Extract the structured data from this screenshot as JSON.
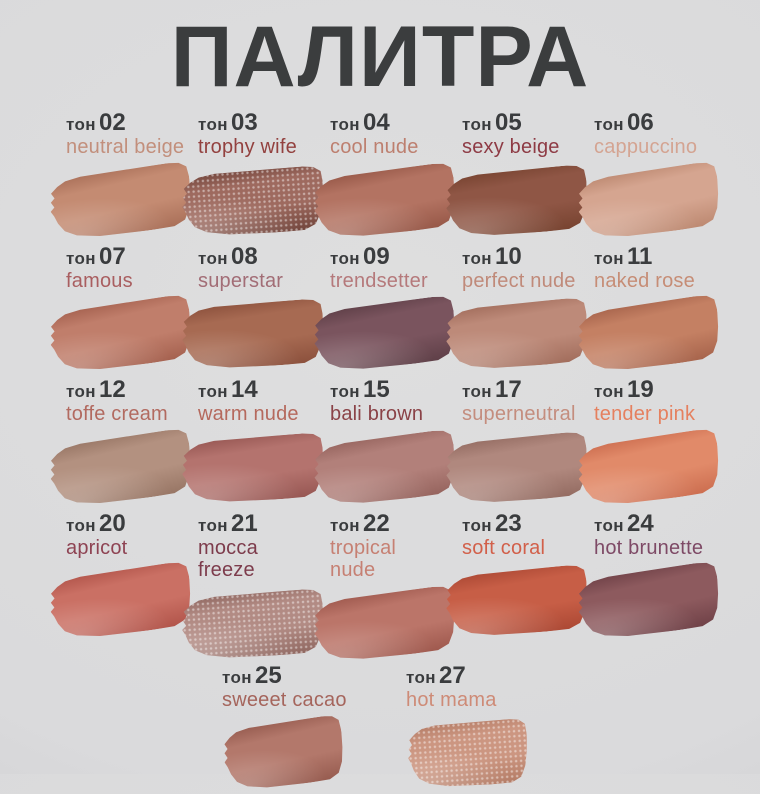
{
  "title": "ПАЛИТРА",
  "tone_word": "тон",
  "colors": {
    "background": "#dcdcde",
    "title_text": "#3b3d3e",
    "tone_label_text": "#3a3c3e"
  },
  "palette": {
    "rows": [
      [
        {
          "tone": "02",
          "name": "neutral beige",
          "name_color": "#c28f7c",
          "swatch": "#c48b72",
          "swatch_dark": "#a86e57",
          "shimmer": false
        },
        {
          "tone": "03",
          "name": "trophy wife",
          "name_color": "#93413f",
          "swatch": "#9e6a5f",
          "swatch_dark": "#6e4239",
          "shimmer": true
        },
        {
          "tone": "04",
          "name": "cool nude",
          "name_color": "#bd7f6f",
          "swatch": "#b37362",
          "swatch_dark": "#955646",
          "shimmer": false
        },
        {
          "tone": "05",
          "name": "sexy beige",
          "name_color": "#8e3b45",
          "swatch": "#8f5645",
          "swatch_dark": "#76422f",
          "shimmer": false
        },
        {
          "tone": "06",
          "name": "cappuccino",
          "name_color": "#d4a492",
          "swatch": "#d5a590",
          "swatch_dark": "#bb876f",
          "shimmer": false
        }
      ],
      [
        {
          "tone": "07",
          "name": "famous",
          "name_color": "#a95e60",
          "swatch": "#c07e6b",
          "swatch_dark": "#a35f4d",
          "shimmer": false
        },
        {
          "tone": "08",
          "name": "superstar",
          "name_color": "#a26d76",
          "swatch": "#a76a52",
          "swatch_dark": "#8a4f3b",
          "shimmer": false
        },
        {
          "tone": "09",
          "name": "trendsetter",
          "name_color": "#b5797b",
          "swatch": "#7a545e",
          "swatch_dark": "#5d3e46",
          "shimmer": false
        },
        {
          "tone": "10",
          "name": "perfect nude",
          "name_color": "#c08a7a",
          "swatch": "#bd8a79",
          "swatch_dark": "#a06b5a",
          "shimmer": false
        },
        {
          "tone": "11",
          "name": "naked rose",
          "name_color": "#c68d76",
          "swatch": "#c48063",
          "swatch_dark": "#a5624a",
          "shimmer": false
        }
      ],
      [
        {
          "tone": "12",
          "name": "toffe cream",
          "name_color": "#b26a60",
          "swatch": "#b39180",
          "swatch_dark": "#967463",
          "shimmer": false
        },
        {
          "tone": "14",
          "name": "warm nude",
          "name_color": "#b5695d",
          "swatch": "#b4736e",
          "swatch_dark": "#955551",
          "shimmer": false
        },
        {
          "tone": "15",
          "name": "bali brown",
          "name_color": "#8a4247",
          "swatch": "#b2807a",
          "swatch_dark": "#94625c",
          "shimmer": false
        },
        {
          "tone": "17",
          "name": "superneutral",
          "name_color": "#c48d7e",
          "swatch": "#b0887e",
          "swatch_dark": "#926a60",
          "shimmer": false
        },
        {
          "tone": "19",
          "name": "tender pink",
          "name_color": "#e5805f",
          "swatch": "#e18a69",
          "swatch_dark": "#cb6c4e",
          "shimmer": false
        }
      ],
      [
        {
          "tone": "20",
          "name": "apricot",
          "name_color": "#8e4353",
          "swatch": "#ca7064",
          "swatch_dark": "#b05349",
          "shimmer": false
        },
        {
          "tone": "21",
          "name": "mocca\nfreeze",
          "name_color": "#7d3c4c",
          "swatch": "#b28b84",
          "swatch_dark": "#8d655e",
          "shimmer": true
        },
        {
          "tone": "22",
          "name": "tropical\nnude",
          "name_color": "#c68073",
          "swatch": "#bb7569",
          "swatch_dark": "#9d574c",
          "shimmer": false
        },
        {
          "tone": "23",
          "name": "soft coral",
          "name_color": "#d2604a",
          "swatch": "#c75e46",
          "swatch_dark": "#aa4733",
          "shimmer": false
        },
        {
          "tone": "24",
          "name": "hot brunette",
          "name_color": "#7e4a66",
          "swatch": "#8d5a5e",
          "swatch_dark": "#6e4046",
          "shimmer": false
        }
      ],
      [
        {
          "tone": "25",
          "name": "sweeet cacao",
          "name_color": "#a5655c",
          "swatch": "#b3786b",
          "swatch_dark": "#955a4e",
          "shimmer": false
        },
        {
          "tone": "27",
          "name": "hot mama",
          "name_color": "#ce8b77",
          "swatch": "#cc9681",
          "swatch_dark": "#b27a64",
          "shimmer": true
        }
      ]
    ]
  }
}
